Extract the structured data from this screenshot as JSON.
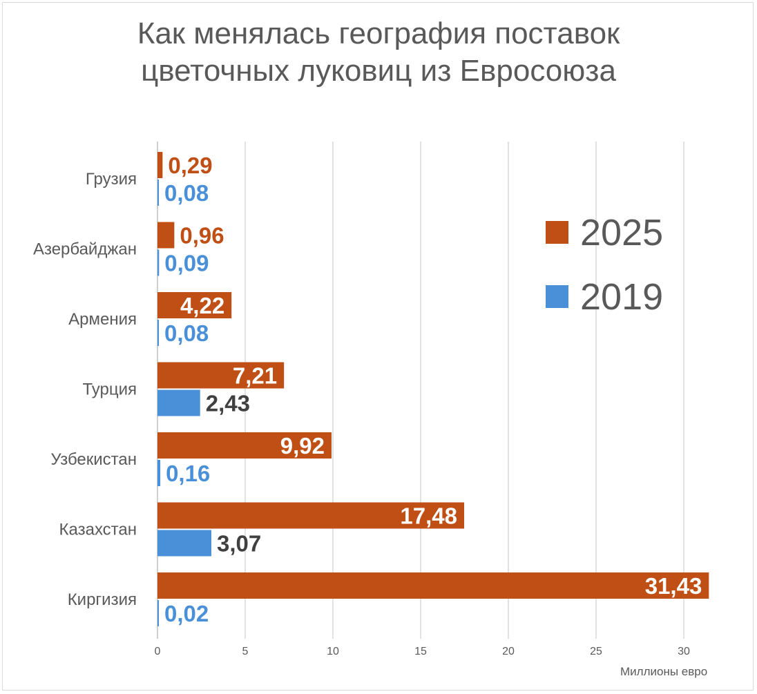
{
  "chart_data": {
    "type": "bar",
    "orientation": "horizontal",
    "title_lines": [
      "Как менялась география поставок",
      "цветочных луковиц  из Евросоюза"
    ],
    "xlabel": "Миллионы евро",
    "ylabel": "",
    "xlim": [
      0,
      31.5
    ],
    "xticks": [
      0,
      5,
      10,
      15,
      20,
      25,
      30
    ],
    "grid": true,
    "legend_position": "right",
    "categories": [
      "Грузия",
      "Азербайджан",
      "Армения",
      "Турция",
      "Узбекистан",
      "Казахстан",
      "Киргизия"
    ],
    "series": [
      {
        "name": "2025",
        "color": "#C04F15",
        "values": [
          0.29,
          0.96,
          4.22,
          7.21,
          9.92,
          17.48,
          31.43
        ],
        "labels": [
          "0,29",
          "0,96",
          "4,22",
          "7,21",
          "9,92",
          "17,48",
          "31,43"
        ],
        "label_inside": [
          false,
          false,
          true,
          true,
          true,
          true,
          true
        ],
        "label_colors": [
          "#C04F15",
          "#C04F15",
          "#ffffff",
          "#ffffff",
          "#ffffff",
          "#ffffff",
          "#ffffff"
        ]
      },
      {
        "name": "2019",
        "color": "#4A90D9",
        "values": [
          0.08,
          0.09,
          0.08,
          2.43,
          0.16,
          3.07,
          0.02
        ],
        "labels": [
          "0,08",
          "0,09",
          "0,08",
          "2,43",
          "0,16",
          "3,07",
          "0,02"
        ],
        "label_inside": [
          false,
          false,
          false,
          false,
          false,
          false,
          false
        ],
        "label_colors": [
          "#4A90D9",
          "#4A90D9",
          "#4A90D9",
          "#404040",
          "#4A90D9",
          "#404040",
          "#4A90D9"
        ]
      }
    ]
  }
}
